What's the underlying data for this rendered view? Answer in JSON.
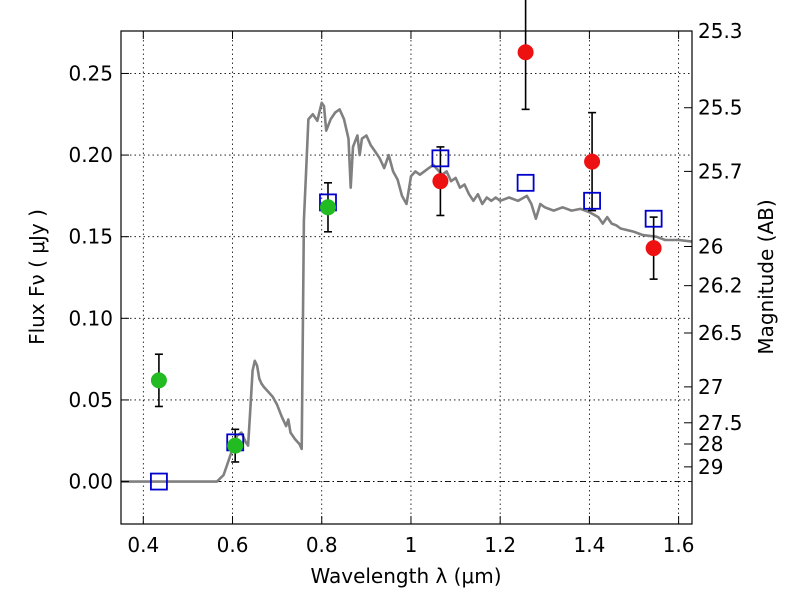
{
  "chart_data": {
    "type": "scatter",
    "xlabel": "Wavelength  λ (μm)",
    "ylabel": "Flux  Fν  ( μJy )",
    "y2label": "Magnitude (AB)",
    "xlim": [
      0.35,
      1.63
    ],
    "ylim": [
      -0.026,
      0.276
    ],
    "grid": true,
    "x_ticks": [
      0.4,
      0.6,
      0.8,
      1.0,
      1.2,
      1.4,
      1.6
    ],
    "x_tick_labels": [
      "0.4",
      "0.6",
      "0.8",
      "1",
      "1.2",
      "1.4",
      "1.6"
    ],
    "y_ticks": [
      0.0,
      0.05,
      0.1,
      0.15,
      0.2,
      0.25
    ],
    "y_tick_labels": [
      "0.00",
      "0.05",
      "0.10",
      "0.15",
      "0.20",
      "0.25"
    ],
    "magnitude_ticks": [
      {
        "label": "25.3",
        "flux": 0.276
      },
      {
        "label": "25.5",
        "flux": 0.229
      },
      {
        "label": "25.7",
        "flux": 0.19
      },
      {
        "label": "26",
        "flux": 0.144
      },
      {
        "label": "26.2",
        "flux": 0.12
      },
      {
        "label": "26.5",
        "flux": 0.091
      },
      {
        "label": "27",
        "flux": 0.058
      },
      {
        "label": "27.5",
        "flux": 0.036
      },
      {
        "label": "28",
        "flux": 0.023
      },
      {
        "label": "29",
        "flux": 0.009
      }
    ],
    "colors": {
      "model": "#808080",
      "model_photometry": "#0000cc",
      "optical_points": "#22bb22",
      "nir_points": "#ee1111",
      "error_bars": "#000000",
      "zero_line": "#000000"
    },
    "series": [
      {
        "name": "model-spectrum",
        "kind": "line",
        "points": [
          [
            0.35,
            0.0
          ],
          [
            0.55,
            0.0
          ],
          [
            0.565,
            0.0
          ],
          [
            0.58,
            0.004
          ],
          [
            0.59,
            0.012
          ],
          [
            0.6,
            0.02
          ],
          [
            0.61,
            0.028
          ],
          [
            0.62,
            0.03
          ],
          [
            0.625,
            0.027
          ],
          [
            0.63,
            0.024
          ],
          [
            0.635,
            0.022
          ],
          [
            0.64,
            0.045
          ],
          [
            0.645,
            0.068
          ],
          [
            0.65,
            0.074
          ],
          [
            0.655,
            0.071
          ],
          [
            0.66,
            0.063
          ],
          [
            0.665,
            0.06
          ],
          [
            0.67,
            0.058
          ],
          [
            0.68,
            0.055
          ],
          [
            0.69,
            0.052
          ],
          [
            0.7,
            0.047
          ],
          [
            0.71,
            0.04
          ],
          [
            0.72,
            0.034
          ],
          [
            0.725,
            0.038
          ],
          [
            0.73,
            0.03
          ],
          [
            0.74,
            0.026
          ],
          [
            0.75,
            0.023
          ],
          [
            0.755,
            0.02
          ],
          [
            0.76,
            0.16
          ],
          [
            0.765,
            0.19
          ],
          [
            0.77,
            0.222
          ],
          [
            0.78,
            0.225
          ],
          [
            0.79,
            0.221
          ],
          [
            0.8,
            0.232
          ],
          [
            0.805,
            0.23
          ],
          [
            0.81,
            0.215
          ],
          [
            0.82,
            0.222
          ],
          [
            0.83,
            0.226
          ],
          [
            0.84,
            0.228
          ],
          [
            0.85,
            0.222
          ],
          [
            0.86,
            0.21
          ],
          [
            0.865,
            0.18
          ],
          [
            0.87,
            0.205
          ],
          [
            0.88,
            0.212
          ],
          [
            0.885,
            0.2
          ],
          [
            0.89,
            0.21
          ],
          [
            0.9,
            0.212
          ],
          [
            0.91,
            0.206
          ],
          [
            0.92,
            0.202
          ],
          [
            0.93,
            0.198
          ],
          [
            0.94,
            0.192
          ],
          [
            0.95,
            0.2
          ],
          [
            0.96,
            0.19
          ],
          [
            0.97,
            0.185
          ],
          [
            0.98,
            0.175
          ],
          [
            0.99,
            0.17
          ],
          [
            1.0,
            0.187
          ],
          [
            1.01,
            0.19
          ],
          [
            1.02,
            0.188
          ],
          [
            1.03,
            0.19
          ],
          [
            1.04,
            0.192
          ],
          [
            1.05,
            0.194
          ],
          [
            1.06,
            0.191
          ],
          [
            1.07,
            0.188
          ],
          [
            1.08,
            0.19
          ],
          [
            1.09,
            0.184
          ],
          [
            1.1,
            0.186
          ],
          [
            1.11,
            0.18
          ],
          [
            1.12,
            0.182
          ],
          [
            1.13,
            0.176
          ],
          [
            1.14,
            0.172
          ],
          [
            1.15,
            0.176
          ],
          [
            1.16,
            0.17
          ],
          [
            1.17,
            0.174
          ],
          [
            1.18,
            0.172
          ],
          [
            1.19,
            0.174
          ],
          [
            1.2,
            0.172
          ],
          [
            1.22,
            0.174
          ],
          [
            1.24,
            0.172
          ],
          [
            1.26,
            0.175
          ],
          [
            1.27,
            0.17
          ],
          [
            1.28,
            0.161
          ],
          [
            1.29,
            0.17
          ],
          [
            1.3,
            0.168
          ],
          [
            1.32,
            0.166
          ],
          [
            1.34,
            0.168
          ],
          [
            1.36,
            0.166
          ],
          [
            1.38,
            0.167
          ],
          [
            1.4,
            0.165
          ],
          [
            1.42,
            0.162
          ],
          [
            1.43,
            0.158
          ],
          [
            1.44,
            0.162
          ],
          [
            1.45,
            0.158
          ],
          [
            1.46,
            0.157
          ],
          [
            1.47,
            0.155
          ],
          [
            1.5,
            0.153
          ],
          [
            1.52,
            0.151
          ],
          [
            1.55,
            0.15
          ],
          [
            1.57,
            0.148
          ],
          [
            1.6,
            0.148
          ],
          [
            1.63,
            0.147
          ]
        ]
      },
      {
        "name": "model-photometry",
        "kind": "open-square",
        "points": [
          {
            "x": 0.435,
            "y": 0.0
          },
          {
            "x": 0.606,
            "y": 0.024
          },
          {
            "x": 0.814,
            "y": 0.171
          },
          {
            "x": 1.066,
            "y": 0.198
          },
          {
            "x": 1.257,
            "y": 0.183
          },
          {
            "x": 1.406,
            "y": 0.172
          },
          {
            "x": 1.544,
            "y": 0.161
          }
        ]
      },
      {
        "name": "observed-optical",
        "kind": "filled-circle",
        "points": [
          {
            "x": 0.435,
            "y": 0.062,
            "err": 0.016
          },
          {
            "x": 0.606,
            "y": 0.022,
            "err": 0.01
          },
          {
            "x": 0.814,
            "y": 0.168,
            "err": 0.015
          }
        ]
      },
      {
        "name": "observed-nir",
        "kind": "filled-circle",
        "points": [
          {
            "x": 1.066,
            "y": 0.184,
            "err": 0.021
          },
          {
            "x": 1.257,
            "y": 0.263,
            "err": 0.035
          },
          {
            "x": 1.406,
            "y": 0.196,
            "err": 0.03
          },
          {
            "x": 1.544,
            "y": 0.143,
            "err": 0.019
          }
        ]
      }
    ]
  }
}
